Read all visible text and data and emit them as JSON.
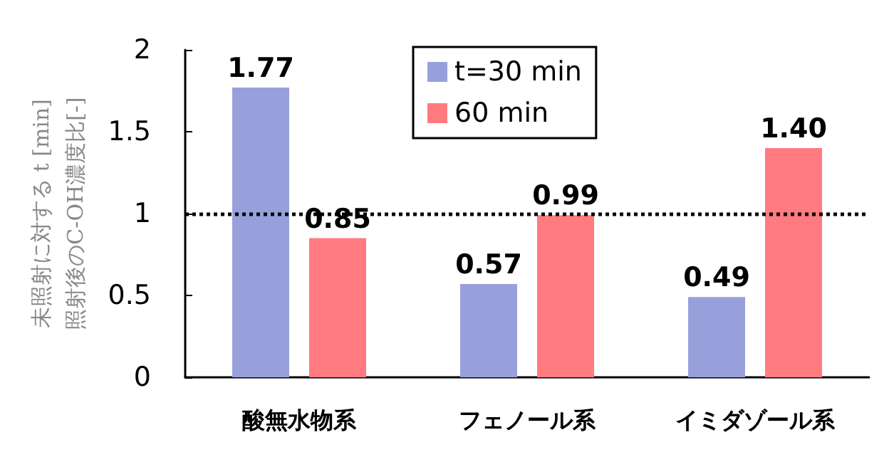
{
  "chart_data": {
    "type": "bar",
    "ylabel": "未照射に対する t [min]\n照射後のC-OH濃度比[-]",
    "categories": [
      "酸無水物系",
      "フェノール系",
      "イミダゾール系"
    ],
    "series": [
      {
        "name": "t=30 min",
        "color": "#98a0dc",
        "values": [
          1.77,
          0.57,
          0.49
        ]
      },
      {
        "name": "60 min",
        "color": "#ff7b80",
        "values": [
          0.85,
          0.99,
          1.4
        ]
      }
    ],
    "value_labels": [
      [
        "1.77",
        "0.57",
        "0.49"
      ],
      [
        "0.85",
        "0.99",
        "1.40"
      ]
    ],
    "ylim": [
      0,
      2
    ],
    "yticks": [
      0,
      0.5,
      1,
      1.5,
      2
    ],
    "grid": false,
    "legend": "top",
    "ref_lines": [
      {
        "axis": "y",
        "value": 1,
        "color": "#000000",
        "line_style": "dotted"
      }
    ]
  }
}
